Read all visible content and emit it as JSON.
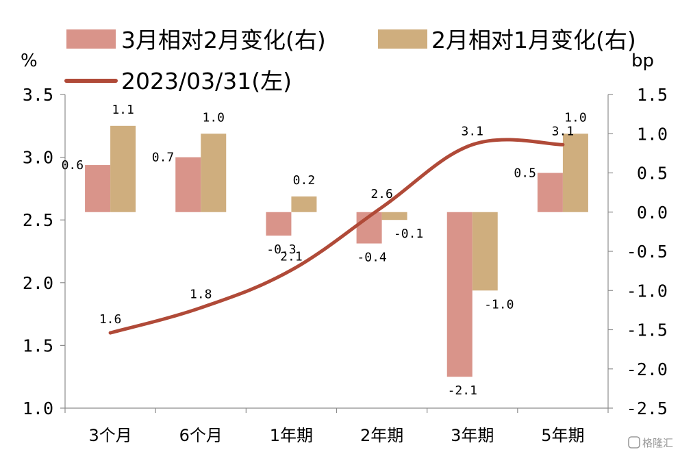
{
  "chart_data": {
    "type": "bar",
    "categories": [
      "3个月",
      "6个月",
      "1年期",
      "2年期",
      "3年期",
      "5年期"
    ],
    "left_axis": {
      "unit": "%",
      "ylim": [
        1.0,
        3.5
      ],
      "ticks": [
        "1.0",
        "1.5",
        "2.0",
        "2.5",
        "3.0",
        "3.5"
      ]
    },
    "right_axis": {
      "unit": "bp",
      "ylim": [
        -2.5,
        1.5
      ],
      "ticks": [
        "-2.5",
        "-2.0",
        "-1.5",
        "-1.0",
        "-0.5",
        "0.0",
        "0.5",
        "1.0",
        "1.5"
      ]
    },
    "series": [
      {
        "name": "3月相对2月变化(右)",
        "type": "bar",
        "axis": "right",
        "color": "#d9948a",
        "values": [
          0.6,
          0.7,
          -0.3,
          -0.4,
          -2.1,
          0.5
        ],
        "labels": [
          "0.6",
          "0.7",
          "-0.3",
          "-0.4",
          "-2.1",
          "0.5"
        ]
      },
      {
        "name": "2月相对1月变化(右)",
        "type": "bar",
        "axis": "right",
        "color": "#cfae7e",
        "values": [
          1.1,
          1.0,
          0.2,
          -0.1,
          -1.0,
          1.0
        ],
        "labels": [
          "1.1",
          "1.0",
          "0.2",
          "-0.1",
          "-1.0",
          "1.0"
        ]
      },
      {
        "name": "2023/03/31(左)",
        "type": "line",
        "axis": "left",
        "color": "#b04a38",
        "values": [
          1.6,
          1.8,
          2.1,
          2.6,
          3.1,
          3.1
        ],
        "labels": [
          "1.6",
          "1.8",
          "2.1",
          "2.6",
          "3.1",
          "3.1"
        ]
      }
    ]
  },
  "watermark": "格隆汇"
}
